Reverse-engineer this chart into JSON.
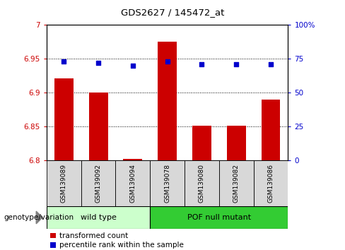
{
  "title": "GDS2627 / 145472_at",
  "samples": [
    "GSM139089",
    "GSM139092",
    "GSM139094",
    "GSM139078",
    "GSM139080",
    "GSM139082",
    "GSM139086"
  ],
  "transformed_counts": [
    6.921,
    6.9,
    6.802,
    6.975,
    6.851,
    6.851,
    6.89
  ],
  "percentile_ranks": [
    73,
    72,
    70,
    73,
    71,
    71,
    71
  ],
  "ylim_left": [
    6.8,
    7.0
  ],
  "ylim_right": [
    0,
    100
  ],
  "yticks_left": [
    6.8,
    6.85,
    6.9,
    6.95,
    7.0
  ],
  "ytick_labels_left": [
    "6.8",
    "6.85",
    "6.9",
    "6.95",
    "7"
  ],
  "yticks_right": [
    0,
    25,
    50,
    75,
    100
  ],
  "ytick_labels_right": [
    "0",
    "25",
    "50",
    "75",
    "100%"
  ],
  "bar_color": "#cc0000",
  "dot_color": "#0000cc",
  "groups": [
    {
      "label": "wild type",
      "indices": [
        0,
        1,
        2
      ],
      "color": "#ccffcc"
    },
    {
      "label": "POF null mutant",
      "indices": [
        3,
        4,
        5,
        6
      ],
      "color": "#33cc33"
    }
  ],
  "group_label": "genotype/variation",
  "legend_bar_label": "transformed count",
  "legend_dot_label": "percentile rank within the sample",
  "grid_color": "black",
  "sample_bg_color": "#d8d8d8",
  "plot_bg": "white"
}
